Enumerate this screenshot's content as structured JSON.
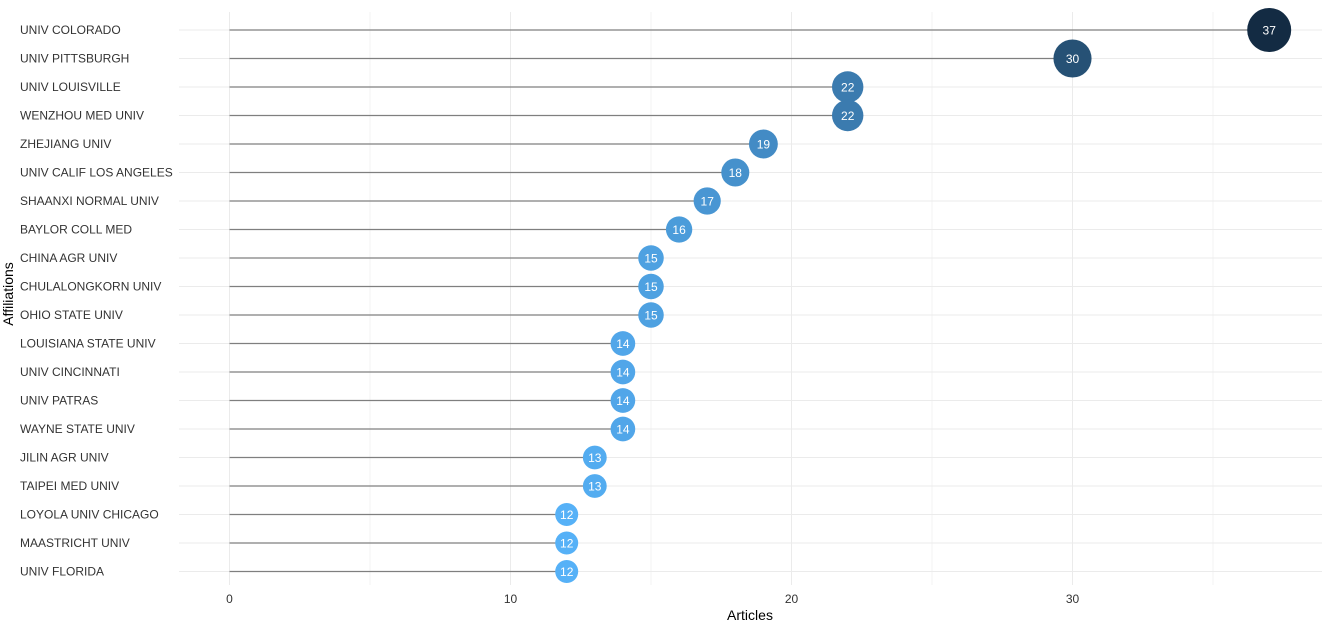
{
  "chart_data": {
    "type": "lollipop",
    "xlabel": "Articles",
    "ylabel": "Affiliations",
    "xlim": [
      -1.8,
      39
    ],
    "x_ticks": [
      0,
      10,
      20,
      30
    ],
    "grid": true,
    "legend": "none",
    "color_low": "#56b1f7",
    "color_high": "#132b43",
    "color_range": [
      12,
      37
    ],
    "categories": [
      "UNIV COLORADO",
      "UNIV PITTSBURGH",
      "UNIV LOUISVILLE",
      "WENZHOU MED UNIV",
      "ZHEJIANG UNIV",
      "UNIV CALIF LOS ANGELES",
      "SHAANXI NORMAL UNIV",
      "BAYLOR COLL MED",
      "CHINA AGR UNIV",
      "CHULALONGKORN UNIV",
      "OHIO STATE UNIV",
      "LOUISIANA STATE UNIV",
      "UNIV CINCINNATI",
      "UNIV PATRAS",
      "WAYNE STATE UNIV",
      "JILIN AGR UNIV",
      "TAIPEI MED UNIV",
      "LOYOLA UNIV CHICAGO",
      "MAASTRICHT UNIV",
      "UNIV FLORIDA"
    ],
    "values": [
      37,
      30,
      22,
      22,
      19,
      18,
      17,
      16,
      15,
      15,
      15,
      14,
      14,
      14,
      14,
      13,
      13,
      12,
      12,
      12
    ]
  }
}
